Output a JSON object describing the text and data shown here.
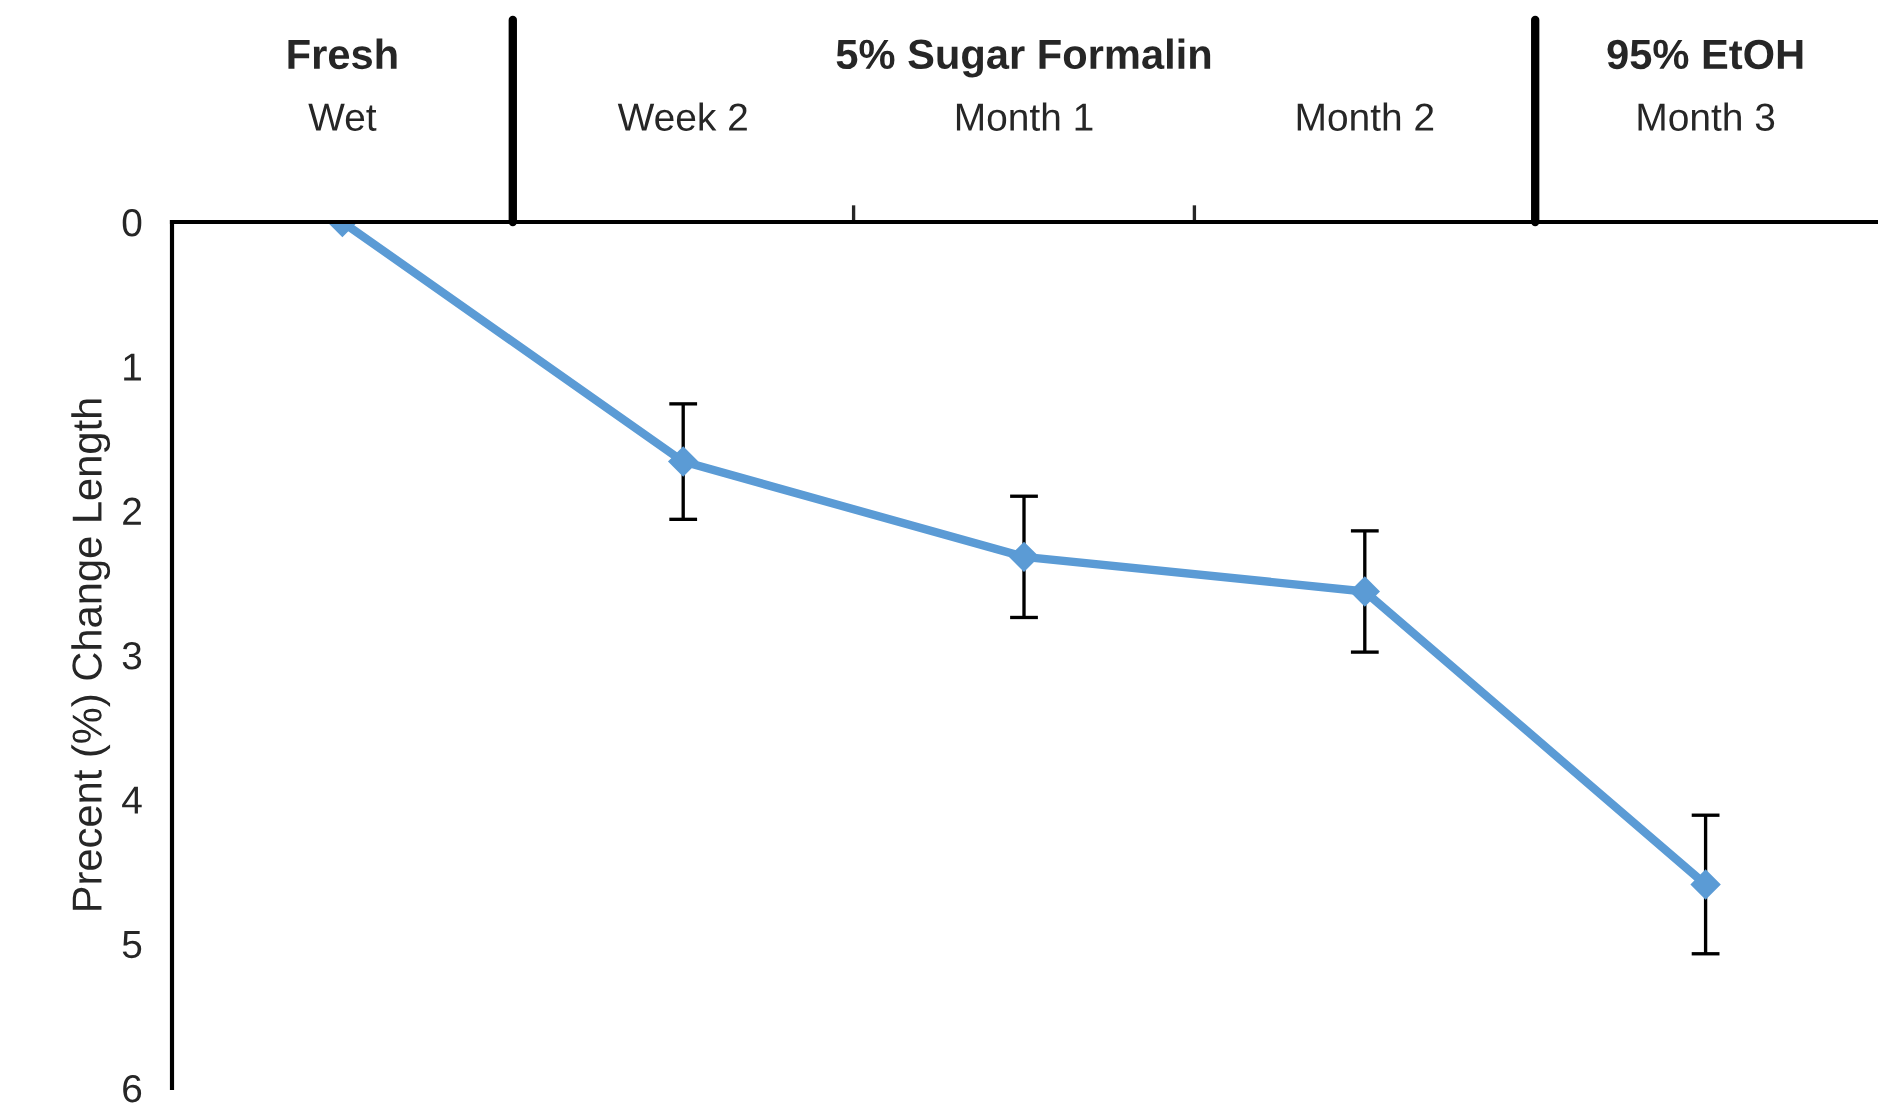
{
  "chart_data": {
    "type": "line",
    "ylabel": "Precent (%) Change Length",
    "categories": [
      "Wet",
      "Week 2",
      "Month 1",
      "Month 2",
      "Month 3"
    ],
    "series": [
      {
        "color": "#5b9bd5",
        "values": [
          0,
          1.66,
          2.32,
          2.56,
          4.59
        ],
        "errors": [
          null,
          0.4,
          0.42,
          0.42,
          0.48
        ]
      }
    ],
    "ylim": [
      6,
      0
    ],
    "yticks": [
      0,
      1,
      2,
      3,
      4,
      5,
      6
    ],
    "marker": "diamond",
    "line_style": "solid",
    "grid": false,
    "legend": false,
    "annotations": [
      "Fresh",
      "5% Sugar Formalin",
      "95% EtOH"
    ]
  }
}
